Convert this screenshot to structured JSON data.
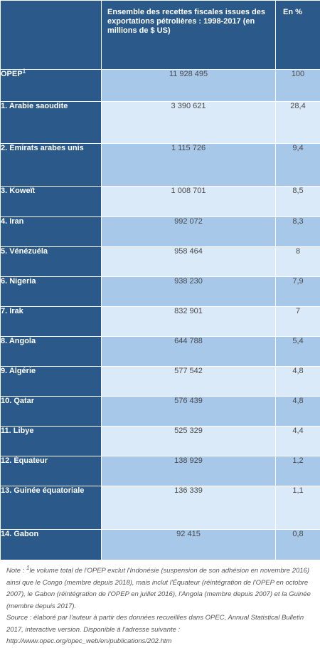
{
  "header": {
    "col1": "",
    "col2": "Ensemble des recettes fiscales issues des exportations pétrolières : 1998-2017 (en millions de $ US)",
    "col3": "En %"
  },
  "total_row": {
    "name": "OPEP",
    "sup": "1",
    "value": "11 928 495",
    "pct": "100"
  },
  "rows": [
    {
      "name": "1. Arabie saoudite",
      "value": "3 390 621",
      "pct": "28,4"
    },
    {
      "name": "2. Émirats arabes unis",
      "value": "1 115 726",
      "pct": "9,4"
    },
    {
      "name": "3. Koweït",
      "value": "1 008 701",
      "pct": "8,5"
    },
    {
      "name": "4. Iran",
      "value": "992 072",
      "pct": "8,3"
    },
    {
      "name": "5. Vénézuéla",
      "value": "958 464",
      "pct": "8"
    },
    {
      "name": "6. Nigeria",
      "value": "938 230",
      "pct": "7,9"
    },
    {
      "name": "7. Irak",
      "value": "832 901",
      "pct": "7"
    },
    {
      "name": "8. Angola",
      "value": "644 788",
      "pct": "5,4"
    },
    {
      "name": "9. Algérie",
      "value": "577 542",
      "pct": "4,8"
    },
    {
      "name": "10. Qatar",
      "value": "576 439",
      "pct": "4,8"
    },
    {
      "name": "11. Libye",
      "value": "525 329",
      "pct": "4,4"
    },
    {
      "name": "12. Équateur",
      "value": "138 929",
      "pct": "1,2"
    },
    {
      "name": "13. Guinée équatoriale",
      "value": "136 339",
      "pct": "1,1"
    },
    {
      "name": "14. Gabon",
      "value": "92 415",
      "pct": "0,8"
    }
  ],
  "note": {
    "prefix": "Note : ",
    "sup": "1",
    "text": "le volume total de l'OPEP exclut l'Indonésie (suspension de son adhésion en novembre 2016) ainsi que le Congo (membre depuis 2018), mais inclut l'Équateur (réintégration de l'OPEP en octobre 2007), le Gabon (réintégration de l'OPEP en juillet 2016), l'Angola (membre depuis 2007) et la Guinée (membre depuis 2017).",
    "source": "Source : élaboré par l'auteur à partir des données recueillies dans OPEC, Annual Statistical Bulletin 2017, interactive version. Disponible à l'adresse suivante : http://www.opec.org/opec_web/en/publications/202.htm"
  }
}
